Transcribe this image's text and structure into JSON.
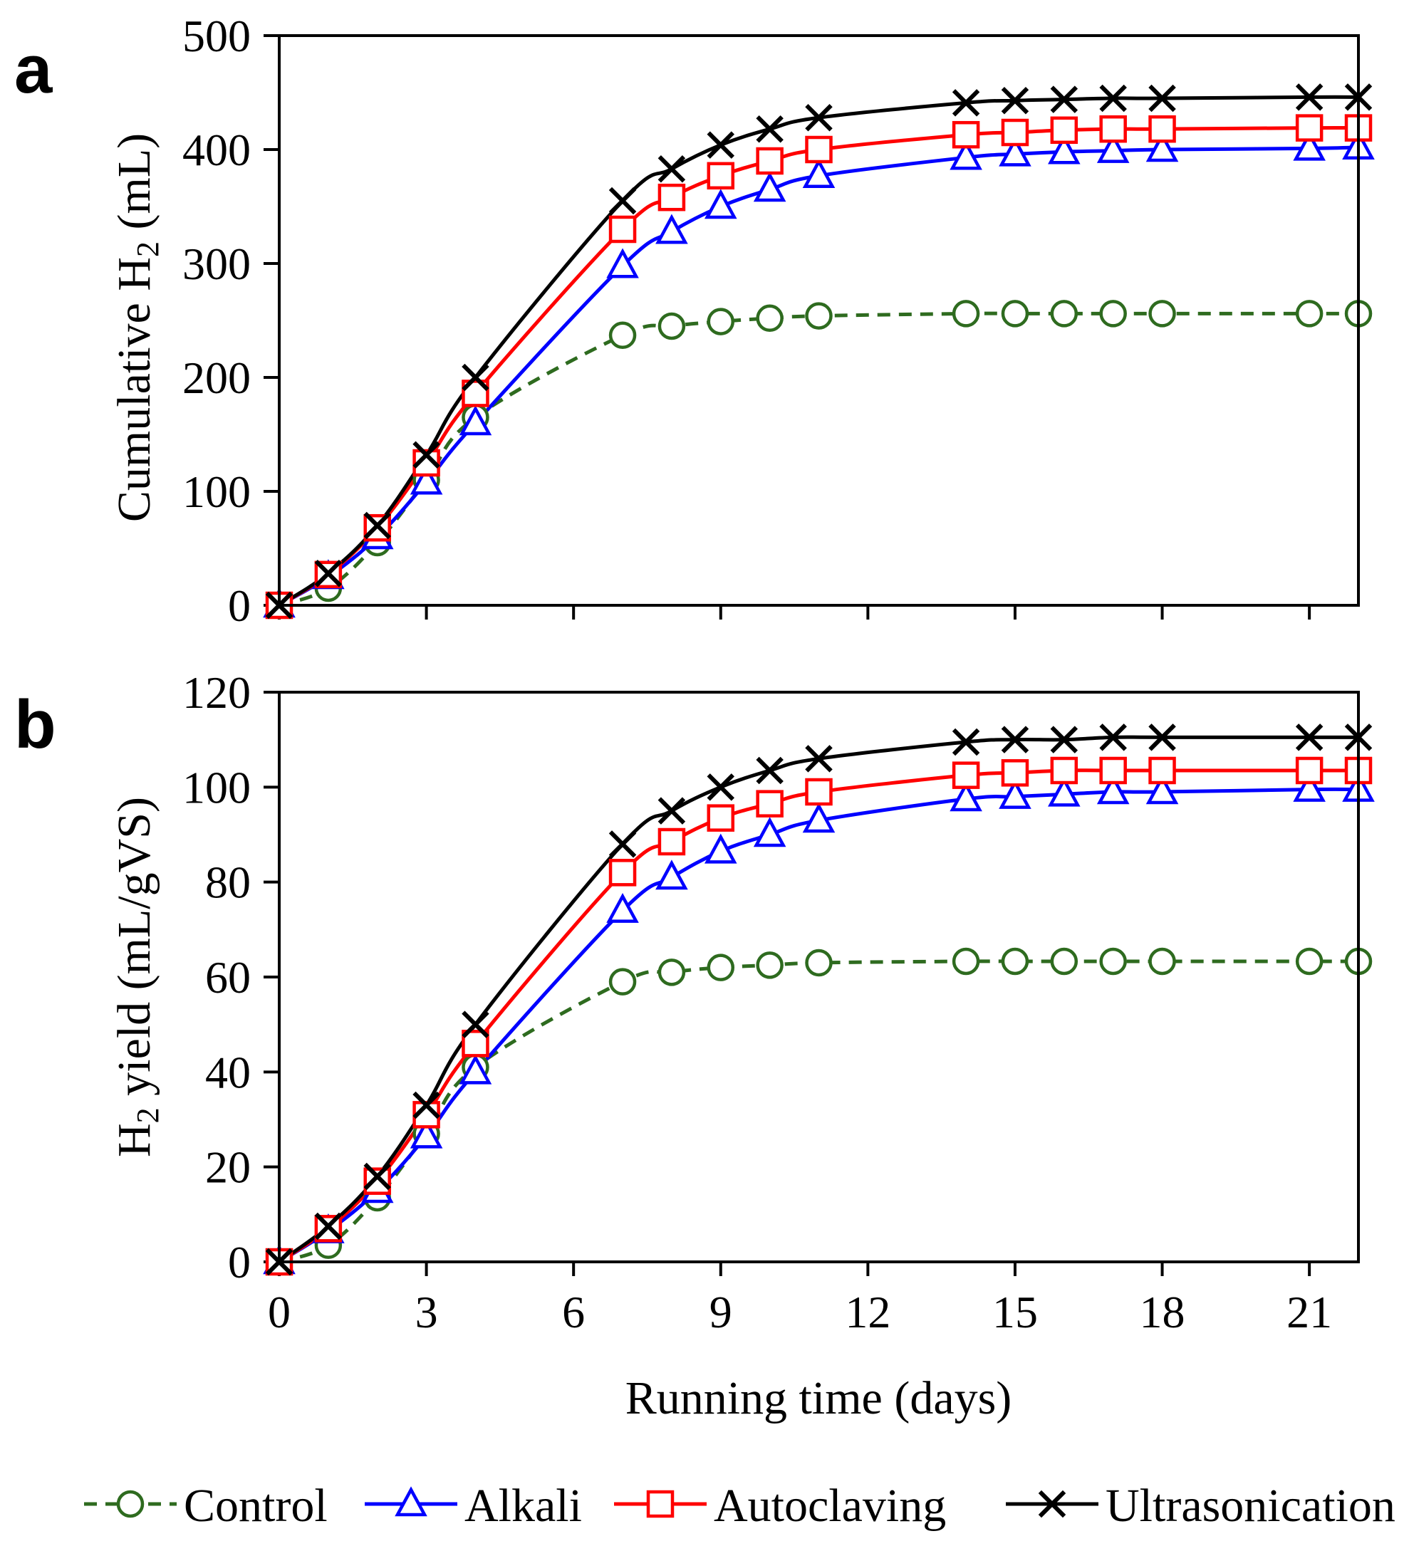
{
  "chart_data": [
    {
      "panel": "a",
      "type": "line",
      "ylabel_main": "Cumulative H",
      "ylabel_sub": "2",
      "ylabel_tail": " (mL)",
      "xlabel": "Running time (days)",
      "xlim": [
        0,
        22
      ],
      "ylim": [
        0,
        500
      ],
      "xticks": [
        0,
        3,
        6,
        9,
        12,
        15,
        18,
        21
      ],
      "yticks": [
        0,
        100,
        200,
        300,
        400,
        500
      ],
      "x": [
        0,
        1,
        2,
        3,
        4,
        7,
        8,
        9,
        10,
        11,
        14,
        15,
        16,
        17,
        18,
        21,
        22
      ],
      "series": [
        {
          "name": "Control",
          "values": [
            0,
            15,
            55,
            110,
            165,
            237,
            245,
            249,
            252,
            254,
            256,
            256,
            256,
            256,
            256,
            256,
            256
          ]
        },
        {
          "name": "Alkali",
          "values": [
            0,
            25,
            60,
            108,
            160,
            298,
            328,
            350,
            365,
            377,
            393,
            396,
            398,
            399,
            400,
            401,
            402
          ]
        },
        {
          "name": "Autoclaving",
          "values": [
            0,
            27,
            68,
            125,
            186,
            330,
            358,
            377,
            390,
            400,
            413,
            415,
            417,
            418,
            418,
            419,
            419
          ]
        },
        {
          "name": "Ultrasonication",
          "values": [
            0,
            28,
            70,
            132,
            200,
            355,
            383,
            404,
            418,
            428,
            441,
            443,
            444,
            445,
            445,
            446,
            446
          ]
        }
      ]
    },
    {
      "panel": "b",
      "type": "line",
      "ylabel_main": "H",
      "ylabel_sub": "2",
      "ylabel_tail": " yield (mL/gVS)",
      "xlabel": "Running time (days)",
      "xlim": [
        0,
        22
      ],
      "ylim": [
        0,
        120
      ],
      "xticks": [
        0,
        3,
        6,
        9,
        12,
        15,
        18,
        21
      ],
      "yticks": [
        0,
        20,
        40,
        60,
        80,
        100,
        120
      ],
      "x": [
        0,
        1,
        2,
        3,
        4,
        7,
        8,
        9,
        10,
        11,
        14,
        15,
        16,
        17,
        18,
        21,
        22
      ],
      "series": [
        {
          "name": "Control",
          "values": [
            0,
            3.5,
            13.5,
            27,
            41,
            59,
            61,
            62,
            62.5,
            63,
            63.3,
            63.3,
            63.3,
            63.3,
            63.3,
            63.3,
            63.3
          ]
        },
        {
          "name": "Alkali",
          "values": [
            0,
            6.5,
            15,
            26.5,
            40,
            74,
            81,
            86.5,
            90,
            93,
            97.5,
            98,
            98.5,
            99,
            99,
            99.5,
            99.5
          ]
        },
        {
          "name": "Autoclaving",
          "values": [
            0,
            7,
            17,
            31,
            46,
            82,
            88.5,
            93.5,
            96.5,
            99,
            102.5,
            103,
            103.5,
            103.5,
            103.5,
            103.5,
            103.5
          ]
        },
        {
          "name": "Ultrasonication",
          "values": [
            0,
            7.5,
            18,
            33,
            50,
            88,
            95,
            100,
            103.5,
            106,
            109.5,
            110,
            110,
            110.5,
            110.5,
            110.5,
            110.5
          ]
        }
      ]
    }
  ],
  "series_styles": {
    "Control": {
      "color": "#2e6b1f",
      "marker": "circle",
      "dashed": true
    },
    "Alkali": {
      "color": "#0000ff",
      "marker": "triangle",
      "dashed": false
    },
    "Autoclaving": {
      "color": "#ff0000",
      "marker": "square",
      "dashed": false
    },
    "Ultrasonication": {
      "color": "#000000",
      "marker": "x",
      "dashed": false
    }
  },
  "legend": [
    {
      "label": "Control",
      "marker": "circle",
      "color": "#2e6b1f",
      "dashed": true
    },
    {
      "label": "Alkali",
      "marker": "triangle",
      "color": "#0000ff",
      "dashed": false
    },
    {
      "label": "Autoclaving",
      "marker": "square",
      "color": "#ff0000",
      "dashed": false
    },
    {
      "label": "Ultrasonication",
      "marker": "x",
      "color": "#000000",
      "dashed": false
    }
  ]
}
